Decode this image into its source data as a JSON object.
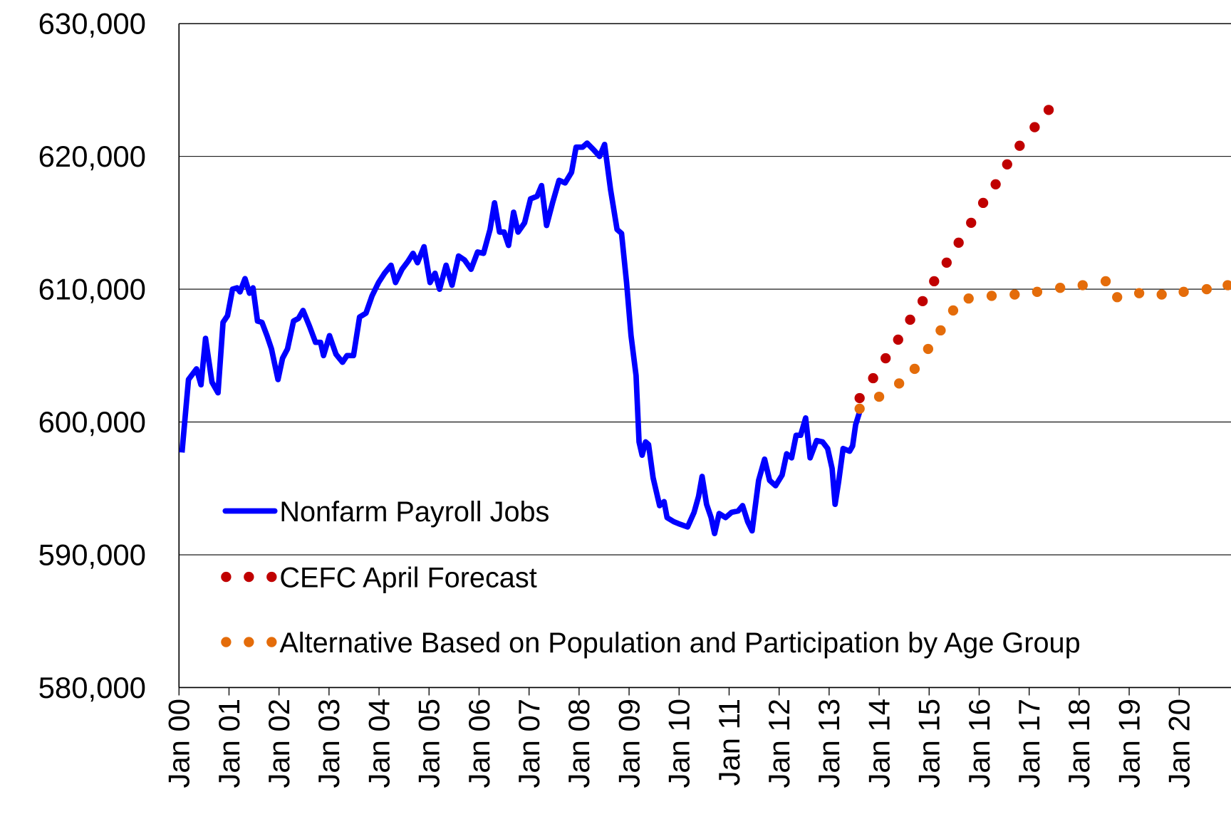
{
  "chart_data": {
    "type": "line",
    "xlim": [
      2000,
      2021.04
    ],
    "xticks": [
      {
        "value": 2000,
        "label": "Jan 00"
      },
      {
        "value": 2001,
        "label": "Jan 01"
      },
      {
        "value": 2002,
        "label": "Jan 02"
      },
      {
        "value": 2003,
        "label": "Jan 03"
      },
      {
        "value": 2004,
        "label": "Jan 04"
      },
      {
        "value": 2005,
        "label": "Jan 05"
      },
      {
        "value": 2006,
        "label": "Jan 06"
      },
      {
        "value": 2007,
        "label": "Jan 07"
      },
      {
        "value": 2008,
        "label": "Jan 08"
      },
      {
        "value": 2009,
        "label": "Jan 09"
      },
      {
        "value": 2010,
        "label": "Jan 10"
      },
      {
        "value": 2011,
        "label": "Jan 11"
      },
      {
        "value": 2012,
        "label": "Jan 12"
      },
      {
        "value": 2013,
        "label": "Jan 13"
      },
      {
        "value": 2014,
        "label": "Jan 14"
      },
      {
        "value": 2015,
        "label": "Jan 15"
      },
      {
        "value": 2016,
        "label": "Jan 16"
      },
      {
        "value": 2017,
        "label": "Jan 17"
      },
      {
        "value": 2018,
        "label": "Jan 18"
      },
      {
        "value": 2019,
        "label": "Jan 19"
      },
      {
        "value": 2020,
        "label": "Jan 20"
      }
    ],
    "ylim": [
      580000,
      630000
    ],
    "yticks": [
      {
        "value": 580000,
        "label": "580,000"
      },
      {
        "value": 590000,
        "label": "590,000"
      },
      {
        "value": 600000,
        "label": "600,000"
      },
      {
        "value": 610000,
        "label": "610,000"
      },
      {
        "value": 620000,
        "label": "620,000"
      },
      {
        "value": 630000,
        "label": "630,000"
      }
    ],
    "grid": true,
    "legend": "lower left",
    "series": [
      {
        "name": "Nonfarm Payroll Jobs",
        "color": "#0000ff",
        "style": "line",
        "x": [
          2000.06,
          2000.19,
          2000.35,
          2000.44,
          2000.53,
          2000.66,
          2000.78,
          2000.88,
          2000.97,
          2001.07,
          2001.16,
          2001.22,
          2001.32,
          2001.41,
          2001.48,
          2001.57,
          2001.66,
          2001.76,
          2001.85,
          2001.98,
          2002.07,
          2002.17,
          2002.29,
          2002.39,
          2002.48,
          2002.61,
          2002.73,
          2002.83,
          2002.89,
          2003.01,
          2003.14,
          2003.27,
          2003.36,
          2003.49,
          2003.61,
          2003.74,
          2003.86,
          2003.99,
          2004.11,
          2004.24,
          2004.33,
          2004.46,
          2004.58,
          2004.68,
          2004.77,
          2004.9,
          2005.02,
          2005.12,
          2005.21,
          2005.34,
          2005.46,
          2005.59,
          2005.71,
          2005.84,
          2005.97,
          2006.09,
          2006.22,
          2006.31,
          2006.41,
          2006.5,
          2006.59,
          2006.69,
          2006.78,
          2006.91,
          2007.03,
          2007.16,
          2007.25,
          2007.35,
          2007.47,
          2007.6,
          2007.72,
          2007.85,
          2007.94,
          2008.07,
          2008.16,
          2008.29,
          2008.41,
          2008.51,
          2008.63,
          2008.76,
          2008.85,
          2008.95,
          2009.04,
          2009.14,
          2009.2,
          2009.26,
          2009.33,
          2009.39,
          2009.48,
          2009.61,
          2009.7,
          2009.76,
          2009.89,
          2010.02,
          2010.17,
          2010.3,
          2010.39,
          2010.46,
          2010.55,
          2010.64,
          2010.71,
          2010.8,
          2010.93,
          2011.05,
          2011.18,
          2011.27,
          2011.37,
          2011.46,
          2011.59,
          2011.71,
          2011.81,
          2011.93,
          2012.06,
          2012.15,
          2012.25,
          2012.34,
          2012.43,
          2012.53,
          2012.62,
          2012.75,
          2012.87,
          2012.97,
          2013.06,
          2013.12,
          2013.19,
          2013.28,
          2013.41,
          2013.47,
          2013.53,
          2013.63
        ],
        "values": [
          597700,
          603200,
          604000,
          602800,
          606300,
          603000,
          602200,
          607500,
          608000,
          610000,
          610100,
          609800,
          610800,
          609700,
          610100,
          607600,
          607500,
          606500,
          605500,
          603200,
          604800,
          605500,
          607600,
          607800,
          608400,
          607200,
          606000,
          606000,
          605000,
          606500,
          605100,
          604500,
          605000,
          605000,
          607900,
          608200,
          609500,
          610500,
          611200,
          611800,
          610500,
          611500,
          612100,
          612700,
          612000,
          613200,
          610500,
          611200,
          610000,
          611800,
          610300,
          612500,
          612200,
          611500,
          612800,
          612700,
          614500,
          616500,
          614300,
          614300,
          613300,
          615800,
          614300,
          615000,
          616800,
          617000,
          617800,
          614800,
          616500,
          618200,
          618000,
          618800,
          620700,
          620700,
          621000,
          620500,
          620000,
          620900,
          617500,
          614500,
          614200,
          610500,
          606500,
          603500,
          598500,
          597500,
          598500,
          598300,
          595800,
          593700,
          594000,
          592800,
          592500,
          592300,
          592100,
          593200,
          594400,
          595900,
          593800,
          592800,
          591600,
          593100,
          592800,
          593200,
          593300,
          593700,
          592500,
          591800,
          595600,
          597200,
          595600,
          595200,
          596000,
          597600,
          597300,
          599000,
          599000,
          600300,
          597300,
          598600,
          598500,
          598000,
          596500,
          593800,
          595500,
          598000,
          597800,
          598200,
          599800,
          601000
        ]
      },
      {
        "name": "CEFC April Forecast",
        "color": "#c00000",
        "style": "dots",
        "x": [
          2013.61,
          2013.88,
          2014.13,
          2014.38,
          2014.62,
          2014.87,
          2015.1,
          2015.35,
          2015.59,
          2015.84,
          2016.08,
          2016.33,
          2016.56,
          2016.81,
          2017.11,
          2017.39
        ],
        "values": [
          601800,
          603300,
          604800,
          606200,
          607700,
          609100,
          610600,
          612000,
          613500,
          615000,
          616500,
          617900,
          619400,
          620800,
          622200,
          623500
        ]
      },
      {
        "name": "Alternative Based on Population and Participation by Age Group",
        "color": "#e46c0a",
        "style": "dots",
        "x": [
          2013.61,
          2014.0,
          2014.4,
          2014.71,
          2014.98,
          2015.23,
          2015.48,
          2015.79,
          2016.25,
          2016.71,
          2017.16,
          2017.62,
          2018.07,
          2018.53,
          2018.76,
          2019.2,
          2019.65,
          2020.09,
          2020.55,
          2020.97
        ],
        "values": [
          601000,
          601900,
          602900,
          604000,
          605500,
          606900,
          608400,
          609300,
          609500,
          609600,
          609800,
          610100,
          610300,
          610600,
          609400,
          609700,
          609600,
          609800,
          610000,
          610300
        ]
      }
    ]
  }
}
